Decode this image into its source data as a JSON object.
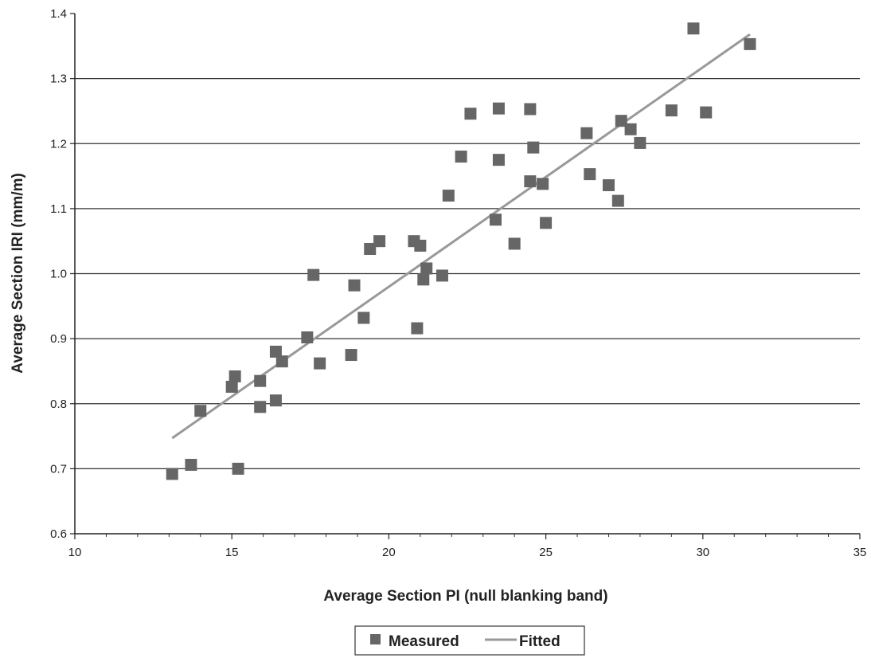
{
  "chart_data": {
    "type": "scatter",
    "xlabel": "Average Section PI (null blanking band)",
    "ylabel": "Average Section IRI (mm/m)",
    "xlim": [
      10,
      35
    ],
    "ylim": [
      0.6,
      1.4
    ],
    "x_ticks": [
      "10",
      "15",
      "20",
      "25",
      "30",
      "35"
    ],
    "y_ticks": [
      "0.6",
      "0.7",
      "0.8",
      "0.9",
      "1.0",
      "1.1",
      "1.2",
      "1.3",
      "1.4"
    ],
    "grid": "horizontal",
    "legend_position": "bottom-center",
    "series": [
      {
        "name": "Measured",
        "type": "scatter",
        "marker": "square",
        "color": "#666666",
        "points": [
          [
            13.1,
            0.692
          ],
          [
            13.7,
            0.706
          ],
          [
            15.2,
            0.7
          ],
          [
            14.0,
            0.789
          ],
          [
            15.0,
            0.826
          ],
          [
            15.1,
            0.842
          ],
          [
            15.9,
            0.835
          ],
          [
            15.9,
            0.795
          ],
          [
            16.4,
            0.805
          ],
          [
            16.4,
            0.88
          ],
          [
            16.6,
            0.865
          ],
          [
            17.4,
            0.902
          ],
          [
            17.6,
            0.998
          ],
          [
            17.8,
            0.862
          ],
          [
            18.8,
            0.875
          ],
          [
            18.9,
            0.982
          ],
          [
            19.2,
            0.932
          ],
          [
            19.4,
            1.038
          ],
          [
            19.7,
            1.05
          ],
          [
            20.8,
            1.05
          ],
          [
            20.9,
            0.916
          ],
          [
            21.0,
            1.043
          ],
          [
            21.1,
            0.991
          ],
          [
            21.2,
            1.008
          ],
          [
            21.7,
            0.997
          ],
          [
            21.9,
            1.12
          ],
          [
            22.3,
            1.18
          ],
          [
            22.6,
            1.246
          ],
          [
            23.4,
            1.083
          ],
          [
            23.5,
            1.254
          ],
          [
            23.5,
            1.175
          ],
          [
            24.0,
            1.046
          ],
          [
            24.5,
            1.253
          ],
          [
            24.5,
            1.142
          ],
          [
            24.6,
            1.194
          ],
          [
            24.9,
            1.138
          ],
          [
            25.0,
            1.078
          ],
          [
            26.3,
            1.216
          ],
          [
            26.4,
            1.153
          ],
          [
            27.0,
            1.136
          ],
          [
            27.3,
            1.112
          ],
          [
            27.4,
            1.235
          ],
          [
            27.7,
            1.222
          ],
          [
            28.0,
            1.201
          ],
          [
            29.0,
            1.251
          ],
          [
            29.7,
            1.377
          ],
          [
            30.1,
            1.248
          ],
          [
            31.5,
            1.353
          ]
        ]
      },
      {
        "name": "Fitted",
        "type": "line",
        "color": "#999999",
        "points": [
          [
            13.1,
            0.747
          ],
          [
            31.5,
            1.368
          ]
        ]
      }
    ]
  }
}
